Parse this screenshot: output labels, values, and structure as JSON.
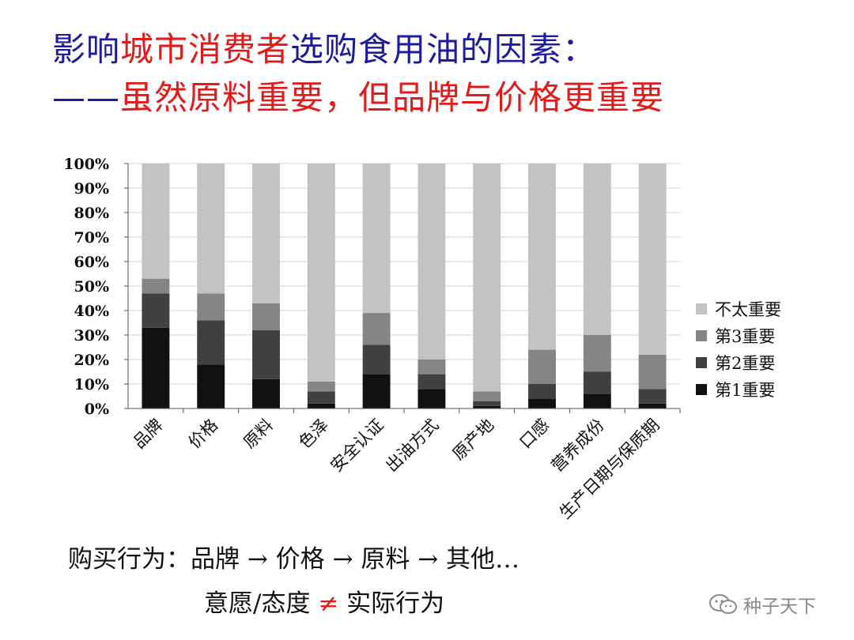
{
  "title": {
    "line1_part1": "影响",
    "line1_part2": "城市消费者",
    "line1_part3": "选购食用油的因素：",
    "line2_dash": "——",
    "line2_text": "虽然原料重要，但品牌与价格更重要"
  },
  "chart_data": {
    "type": "bar",
    "stacked": true,
    "categories": [
      "品牌",
      "价格",
      "原料",
      "色泽",
      "安全认证",
      "出油方式",
      "原产地",
      "口感",
      "营养成份",
      "生产日期与保质期"
    ],
    "series": [
      {
        "name": "第1重要",
        "color": "#111111",
        "values": [
          33,
          18,
          12,
          2,
          14,
          8,
          1,
          4,
          6,
          2
        ]
      },
      {
        "name": "第2重要",
        "color": "#404040",
        "values": [
          14,
          18,
          20,
          5,
          12,
          6,
          2,
          6,
          9,
          6
        ]
      },
      {
        "name": "第3重要",
        "color": "#858585",
        "values": [
          6,
          11,
          11,
          4,
          13,
          6,
          4,
          14,
          15,
          14
        ]
      },
      {
        "name": "不太重要",
        "color": "#c3c3c3",
        "values": [
          47,
          53,
          57,
          89,
          61,
          80,
          93,
          76,
          70,
          78
        ]
      }
    ],
    "ylim": [
      0,
      100
    ],
    "y_ticks": [
      "0%",
      "10%",
      "20%",
      "30%",
      "40%",
      "50%",
      "60%",
      "70%",
      "80%",
      "90%",
      "100%"
    ],
    "grid": true,
    "legend_position": "right"
  },
  "notes": {
    "line1": "购买行为：品牌 → 价格 → 原料 → 其他…",
    "line2_a": "意愿/态度",
    "line2_neq": "≠",
    "line2_b": "实际行为"
  },
  "watermark": {
    "icon": "wechat-icon",
    "text": "种子天下"
  }
}
